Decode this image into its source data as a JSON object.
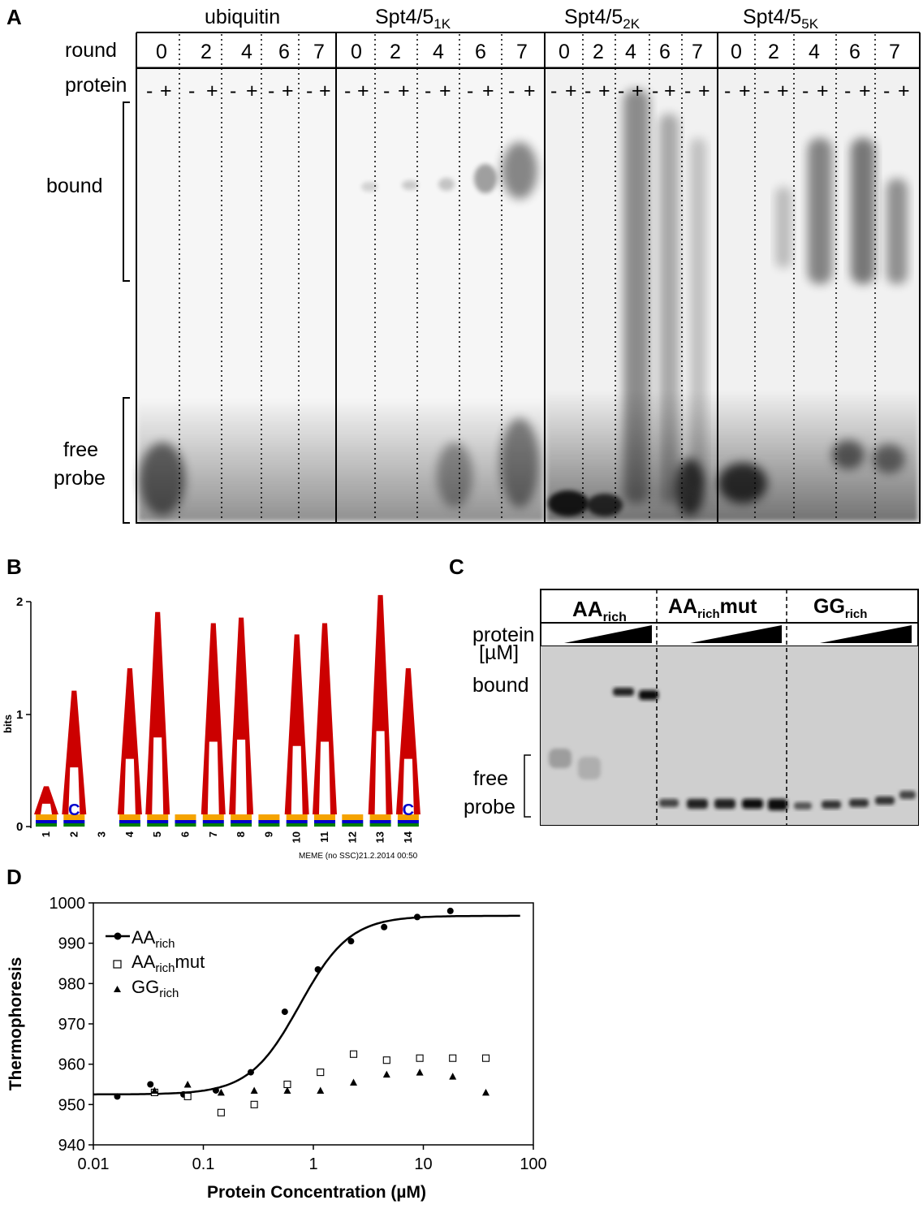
{
  "panel_a": {
    "label": "A",
    "row_round": "round",
    "row_protein": "protein",
    "groups": [
      {
        "name": "ubiquitin",
        "sub": ""
      },
      {
        "name": "Spt4/5",
        "sub": "1K"
      },
      {
        "name": "Spt4/5",
        "sub": "2K"
      },
      {
        "name": "Spt4/5",
        "sub": "5K"
      }
    ],
    "rounds_group_1": [
      "0",
      "2",
      "4",
      "6",
      "7"
    ],
    "rounds_group_2": [
      "0",
      "2",
      "4",
      "6",
      "7"
    ],
    "rounds_group_3": [
      "0",
      "2",
      "4",
      "6",
      "7"
    ],
    "rounds_group_4": [
      "0",
      "2",
      "4",
      "6",
      "7"
    ],
    "minus": "-",
    "plus": "+",
    "bound_label": "bound",
    "free_label_1": "free",
    "free_label_2": "probe"
  },
  "panel_b": {
    "label": "B",
    "y_label": "bits",
    "y_ticks": [
      "2",
      "1",
      "0"
    ],
    "positions": [
      "1",
      "2",
      "3",
      "4",
      "5",
      "6",
      "7",
      "8",
      "9",
      "10",
      "11",
      "12",
      "13",
      "14"
    ],
    "a_heights_bits": [
      0.25,
      1.1,
      0,
      1.3,
      1.8,
      0,
      1.7,
      1.75,
      0,
      1.6,
      1.7,
      0,
      1.95,
      1.3
    ],
    "caption": "MEME (no SSC)21.2.2014 00:50",
    "colors": {
      "A": "#cc0000",
      "C": "#0000cc",
      "G": "#f5a300",
      "T": "#008000"
    }
  },
  "panel_c": {
    "label": "C",
    "lanes": [
      {
        "main": "AA",
        "sub": "rich",
        "tail": ""
      },
      {
        "main": "AA",
        "sub": "rich",
        "tail": "mut"
      },
      {
        "main": "GG",
        "sub": "rich",
        "tail": ""
      }
    ],
    "protein_label": "protein",
    "unit_label": "[µM]",
    "bound_label": "bound",
    "free_label_1": "free",
    "free_label_2": "probe"
  },
  "panel_d": {
    "label": "D",
    "chart_data": {
      "type": "scatter",
      "xlabel": "Protein Concentration (µM)",
      "ylabel": "Thermophoresis",
      "x_scale": "log",
      "xlim": [
        0.01,
        100
      ],
      "ylim": [
        940,
        1000
      ],
      "x_ticks": [
        "0.01",
        "0.1",
        "1",
        "10",
        "100"
      ],
      "y_ticks": [
        "940",
        "950",
        "960",
        "970",
        "980",
        "990",
        "1000"
      ],
      "legend_position": "top-left",
      "series": [
        {
          "name": "AA",
          "name_sub": "rich",
          "name_tail": "",
          "marker": "circle",
          "fit": true,
          "x": [
            0.0165,
            0.033,
            0.066,
            0.13,
            0.27,
            0.55,
            1.1,
            2.2,
            4.4,
            8.8,
            17.6
          ],
          "y": [
            952,
            955,
            952.5,
            953.5,
            958,
            973,
            983.5,
            990.5,
            994,
            996.5,
            998
          ]
        },
        {
          "name": "AA",
          "name_sub": "rich",
          "name_tail": "mut",
          "marker": "open-square",
          "fit": false,
          "x": [
            0.036,
            0.072,
            0.145,
            0.29,
            0.58,
            1.16,
            2.32,
            4.64,
            9.28,
            18.5,
            37
          ],
          "y": [
            953,
            952,
            948,
            950,
            955,
            958,
            962.5,
            961,
            961.5,
            961.5,
            961.5
          ]
        },
        {
          "name": "GG",
          "name_sub": "rich",
          "name_tail": "",
          "marker": "filled-triangle",
          "fit": false,
          "x": [
            0.036,
            0.072,
            0.145,
            0.29,
            0.58,
            1.16,
            2.32,
            4.64,
            9.28,
            18.5,
            37
          ],
          "y": [
            953.5,
            955,
            953,
            953.5,
            953.5,
            953.5,
            955.5,
            957.5,
            958,
            957,
            953
          ]
        }
      ]
    }
  }
}
